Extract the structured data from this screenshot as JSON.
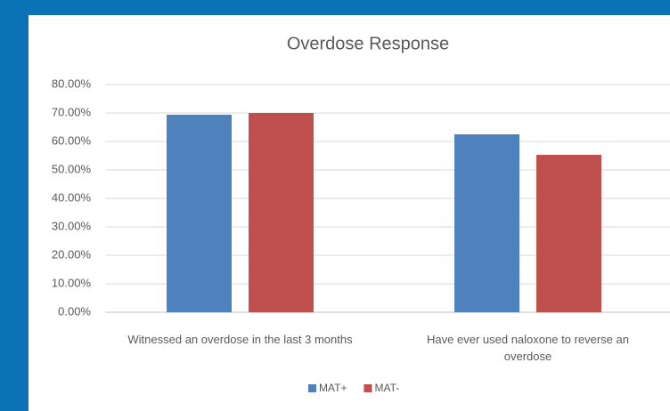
{
  "chart_data": {
    "type": "bar",
    "title": "Overdose Response",
    "categories": [
      "Witnessed an overdose in the last 3 months",
      "Have ever used naloxone to reverse an overdose"
    ],
    "series": [
      {
        "name": "MAT+",
        "color": "#4f81bd",
        "values": [
          69.4,
          62.5
        ]
      },
      {
        "name": "MAT-",
        "color": "#c0504d",
        "values": [
          70,
          55.3
        ]
      }
    ],
    "ylim": [
      0,
      80
    ],
    "yticks": [
      {
        "value": 0,
        "label": "0.00%"
      },
      {
        "value": 10,
        "label": "10.00%"
      },
      {
        "value": 20,
        "label": "20.00%"
      },
      {
        "value": 30,
        "label": "30.00%"
      },
      {
        "value": 40,
        "label": "40.00%"
      },
      {
        "value": 50,
        "label": "50.00%"
      },
      {
        "value": 60,
        "label": "60.00%"
      },
      {
        "value": 70,
        "label": "70.00%"
      },
      {
        "value": 80,
        "label": "80.00%"
      }
    ],
    "grid": true,
    "legend": "bottom"
  }
}
